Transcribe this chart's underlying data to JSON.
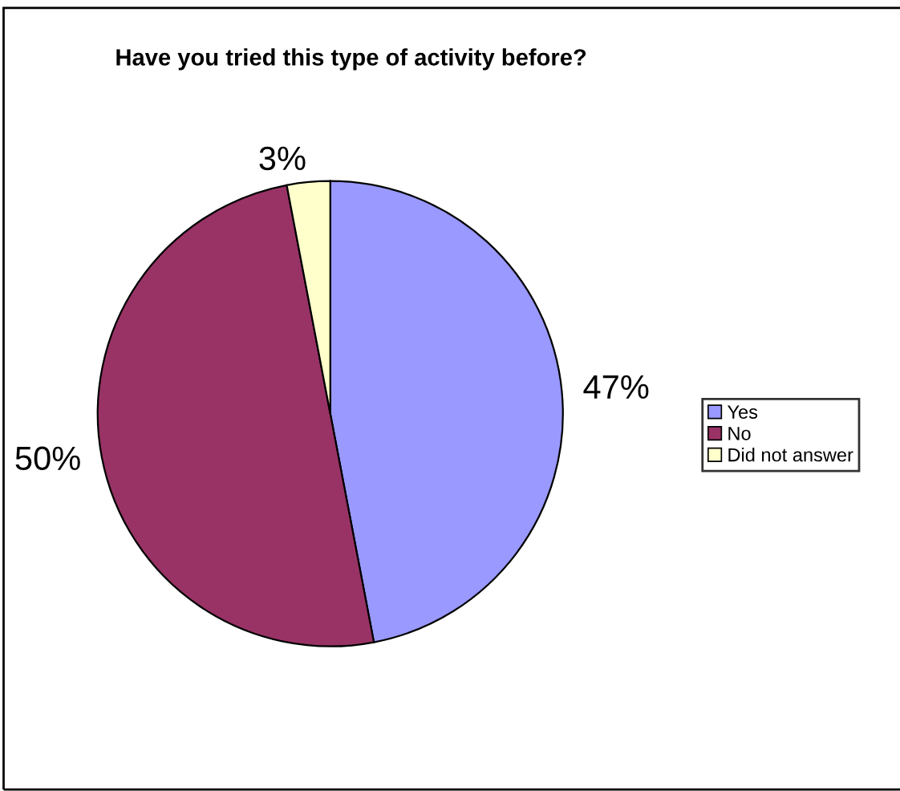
{
  "chart_data": {
    "type": "pie",
    "title": "Have you tried this type of activity before?",
    "categories": [
      "Yes",
      "No",
      "Did not answer"
    ],
    "values": [
      47,
      50,
      3
    ],
    "colors": [
      "#9999ff",
      "#993366",
      "#ffffcc"
    ],
    "value_labels": [
      "47%",
      "50%",
      "3%"
    ],
    "legend": "right"
  }
}
